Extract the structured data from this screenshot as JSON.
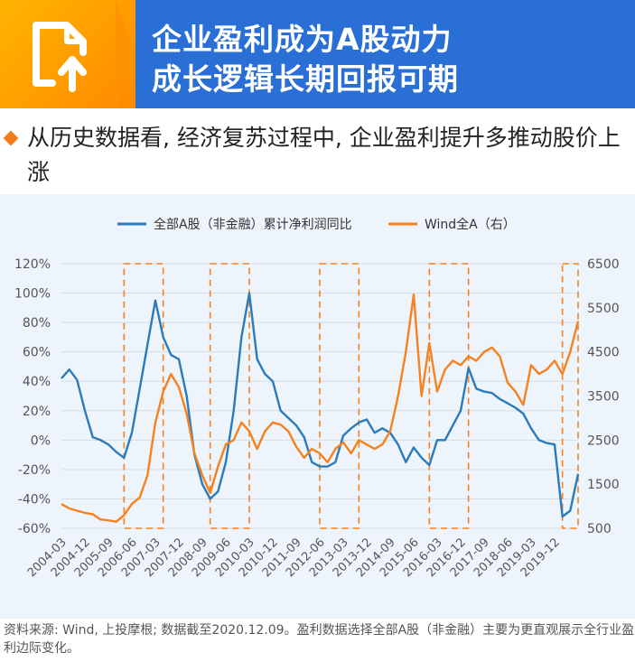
{
  "header": {
    "title_line1": "企业盈利成为A股动力",
    "title_line2": "成长逻辑长期回报可期",
    "icon": "document-upload-icon"
  },
  "subtitle": "从历史数据看, 经济复苏过程中, 企业盈利提升多推动股价上涨",
  "footnote": "资料来源: Wind, 上投摩根; 数据截至2020.12.09。盈利数据选择全部A股（非金融）主要为更直观展示全行业盈利边际变化。",
  "colors": {
    "banner": "#2a6fd6",
    "accent": "#ff9a00",
    "series_left": "#2b7bbb",
    "series_right": "#f5821f",
    "highlight_box": "#f5821f"
  },
  "chart_data": {
    "type": "line",
    "legend_position": "top",
    "series": [
      {
        "name": "全部A股（非金融）累计净利润同比",
        "axis": "left",
        "points": [
          [
            "2004-03",
            42
          ],
          [
            "2004-06",
            48
          ],
          [
            "2004-09",
            41
          ],
          [
            "2004-12",
            20
          ],
          [
            "2005-03",
            2
          ],
          [
            "2005-06",
            0
          ],
          [
            "2005-09",
            -3
          ],
          [
            "2005-12",
            -8
          ],
          [
            "2006-03",
            -12
          ],
          [
            "2006-06",
            5
          ],
          [
            "2006-09",
            35
          ],
          [
            "2006-12",
            65
          ],
          [
            "2007-03",
            95
          ],
          [
            "2007-06",
            70
          ],
          [
            "2007-09",
            58
          ],
          [
            "2007-12",
            55
          ],
          [
            "2008-03",
            30
          ],
          [
            "2008-06",
            -10
          ],
          [
            "2008-09",
            -30
          ],
          [
            "2008-12",
            -40
          ],
          [
            "2009-03",
            -35
          ],
          [
            "2009-06",
            -15
          ],
          [
            "2009-09",
            20
          ],
          [
            "2009-12",
            70
          ],
          [
            "2010-03",
            100
          ],
          [
            "2010-06",
            55
          ],
          [
            "2010-09",
            45
          ],
          [
            "2010-12",
            40
          ],
          [
            "2011-03",
            20
          ],
          [
            "2011-06",
            15
          ],
          [
            "2011-09",
            10
          ],
          [
            "2011-12",
            2
          ],
          [
            "2012-03",
            -15
          ],
          [
            "2012-06",
            -18
          ],
          [
            "2012-09",
            -18
          ],
          [
            "2012-12",
            -15
          ],
          [
            "2013-03",
            3
          ],
          [
            "2013-06",
            8
          ],
          [
            "2013-09",
            12
          ],
          [
            "2013-12",
            14
          ],
          [
            "2014-03",
            5
          ],
          [
            "2014-06",
            8
          ],
          [
            "2014-09",
            5
          ],
          [
            "2014-12",
            -3
          ],
          [
            "2015-03",
            -15
          ],
          [
            "2015-06",
            -5
          ],
          [
            "2015-09",
            -12
          ],
          [
            "2015-12",
            -17
          ],
          [
            "2016-03",
            0
          ],
          [
            "2016-06",
            0
          ],
          [
            "2016-09",
            10
          ],
          [
            "2016-12",
            20
          ],
          [
            "2017-03",
            49
          ],
          [
            "2017-06",
            35
          ],
          [
            "2017-09",
            33
          ],
          [
            "2017-12",
            32
          ],
          [
            "2018-03",
            28
          ],
          [
            "2018-06",
            25
          ],
          [
            "2018-09",
            22
          ],
          [
            "2018-12",
            18
          ],
          [
            "2019-03",
            8
          ],
          [
            "2019-06",
            0
          ],
          [
            "2019-09",
            -2
          ],
          [
            "2019-12",
            -3
          ],
          [
            "2020-03",
            -52
          ],
          [
            "2020-06",
            -48
          ],
          [
            "2020-09",
            -23
          ]
        ]
      },
      {
        "name": "Wind全A（右）",
        "axis": "right",
        "points": [
          [
            "2004-03",
            1050
          ],
          [
            "2004-06",
            950
          ],
          [
            "2004-09",
            900
          ],
          [
            "2004-12",
            850
          ],
          [
            "2005-03",
            820
          ],
          [
            "2005-06",
            700
          ],
          [
            "2005-09",
            680
          ],
          [
            "2005-12",
            650
          ],
          [
            "2006-03",
            800
          ],
          [
            "2006-06",
            1050
          ],
          [
            "2006-09",
            1200
          ],
          [
            "2006-12",
            1700
          ],
          [
            "2007-03",
            2900
          ],
          [
            "2007-06",
            3600
          ],
          [
            "2007-09",
            4000
          ],
          [
            "2007-12",
            3700
          ],
          [
            "2008-03",
            3100
          ],
          [
            "2008-06",
            2200
          ],
          [
            "2008-09",
            1700
          ],
          [
            "2008-12",
            1300
          ],
          [
            "2009-03",
            1900
          ],
          [
            "2009-06",
            2400
          ],
          [
            "2009-09",
            2500
          ],
          [
            "2009-12",
            2900
          ],
          [
            "2010-03",
            2700
          ],
          [
            "2010-06",
            2300
          ],
          [
            "2010-09",
            2700
          ],
          [
            "2010-12",
            2900
          ],
          [
            "2011-03",
            2850
          ],
          [
            "2011-06",
            2700
          ],
          [
            "2011-09",
            2350
          ],
          [
            "2011-12",
            2100
          ],
          [
            "2012-03",
            2300
          ],
          [
            "2012-06",
            2200
          ],
          [
            "2012-09",
            2000
          ],
          [
            "2012-12",
            2300
          ],
          [
            "2013-03",
            2450
          ],
          [
            "2013-06",
            2200
          ],
          [
            "2013-09",
            2500
          ],
          [
            "2013-12",
            2400
          ],
          [
            "2014-03",
            2300
          ],
          [
            "2014-06",
            2400
          ],
          [
            "2014-09",
            2700
          ],
          [
            "2014-12",
            3500
          ],
          [
            "2015-03",
            4500
          ],
          [
            "2015-06",
            5800
          ],
          [
            "2015-09",
            3500
          ],
          [
            "2015-12",
            4700
          ],
          [
            "2016-03",
            3600
          ],
          [
            "2016-06",
            4100
          ],
          [
            "2016-09",
            4300
          ],
          [
            "2016-12",
            4200
          ],
          [
            "2017-03",
            4400
          ],
          [
            "2017-06",
            4300
          ],
          [
            "2017-09",
            4500
          ],
          [
            "2017-12",
            4600
          ],
          [
            "2018-03",
            4400
          ],
          [
            "2018-06",
            3800
          ],
          [
            "2018-09",
            3600
          ],
          [
            "2018-12",
            3300
          ],
          [
            "2019-03",
            4200
          ],
          [
            "2019-06",
            4000
          ],
          [
            "2019-09",
            4100
          ],
          [
            "2019-12",
            4300
          ],
          [
            "2020-03",
            4000
          ],
          [
            "2020-06",
            4500
          ],
          [
            "2020-09",
            5200
          ]
        ]
      }
    ],
    "y_left": {
      "min": -60,
      "max": 120,
      "ticks": [
        "120%",
        "100%",
        "80%",
        "60%",
        "40%",
        "20%",
        "0%",
        "-20%",
        "-40%",
        "-60%"
      ]
    },
    "y_right": {
      "min": 500,
      "max": 6500,
      "ticks": [
        "6500",
        "5500",
        "4500",
        "3500",
        "2500",
        "1500",
        "500"
      ]
    },
    "x_ticks": [
      "2004-03",
      "2004-12",
      "2005-09",
      "2006-06",
      "2007-03",
      "2007-12",
      "2008-09",
      "2009-06",
      "2010-03",
      "2010-12",
      "2011-09",
      "2012-06",
      "2013-03",
      "2013-12",
      "2014-09",
      "2015-06",
      "2016-03",
      "2016-12",
      "2017-09",
      "2018-06",
      "2019-03",
      "2019-12"
    ],
    "highlight_periods": [
      [
        "2006-03",
        "2007-06"
      ],
      [
        "2008-12",
        "2010-03"
      ],
      [
        "2012-06",
        "2013-09"
      ],
      [
        "2015-12",
        "2017-03"
      ],
      [
        "2020-03",
        "2020-09"
      ]
    ],
    "grid": true
  }
}
